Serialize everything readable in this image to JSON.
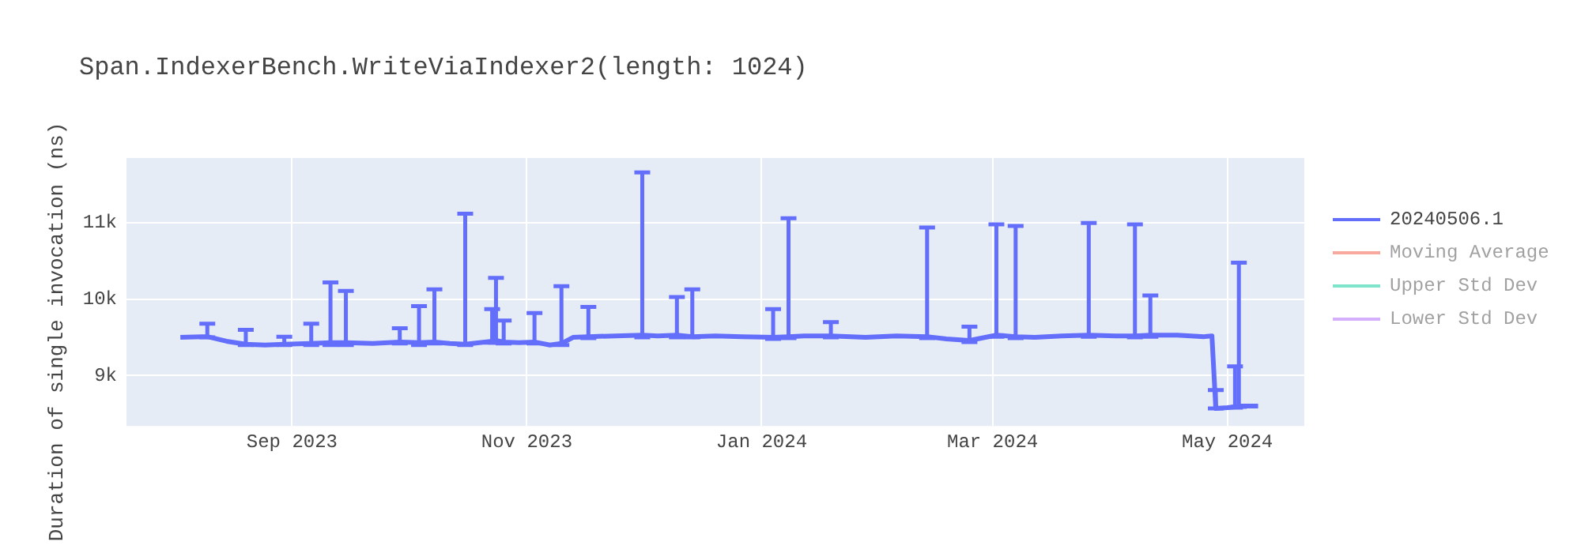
{
  "chart_data": {
    "type": "line",
    "title": "Span.IndexerBench.WriteViaIndexer2(length: 1024)",
    "ylabel": "Duration of single invocation (ns)",
    "x": [
      "2023-08-03",
      "2023-08-10",
      "2023-08-15",
      "2023-08-20",
      "2023-08-25",
      "2023-08-30",
      "2023-09-06",
      "2023-09-11",
      "2023-09-15",
      "2023-09-22",
      "2023-09-29",
      "2023-10-04",
      "2023-10-08",
      "2023-10-12",
      "2023-10-16",
      "2023-10-23",
      "2023-10-24",
      "2023-10-26",
      "2023-10-30",
      "2023-11-03",
      "2023-11-07",
      "2023-11-10",
      "2023-11-13",
      "2023-11-17",
      "2023-11-24",
      "2023-12-01",
      "2023-12-05",
      "2023-12-10",
      "2023-12-14",
      "2023-12-20",
      "2023-12-27",
      "2024-01-04",
      "2024-01-08",
      "2024-01-12",
      "2024-01-19",
      "2024-01-28",
      "2024-02-05",
      "2024-02-13",
      "2024-02-18",
      "2024-02-24",
      "2024-03-02",
      "2024-03-07",
      "2024-03-12",
      "2024-03-19",
      "2024-03-26",
      "2024-04-02",
      "2024-04-07",
      "2024-04-11",
      "2024-04-18",
      "2024-04-25",
      "2024-04-27",
      "2024-04-28",
      "2024-05-01",
      "2024-05-03",
      "2024-05-04",
      "2024-05-09"
    ],
    "series": [
      {
        "name": "20240506.1",
        "color": "#636efa",
        "values": [
          9500,
          9510,
          9450,
          9410,
          9400,
          9410,
          9420,
          9430,
          9430,
          9420,
          9440,
          9430,
          9440,
          9420,
          9410,
          9450,
          9460,
          9440,
          9430,
          9440,
          9400,
          9420,
          9500,
          9510,
          9520,
          9530,
          9520,
          9530,
          9510,
          9520,
          9510,
          9500,
          9510,
          9520,
          9520,
          9500,
          9520,
          9510,
          9480,
          9460,
          9530,
          9510,
          9500,
          9520,
          9530,
          9520,
          9520,
          9530,
          9530,
          9510,
          9520,
          8570,
          8580,
          8590,
          8600,
          8600
        ],
        "errors": [
          null,
          [
            9500,
            9680
          ],
          null,
          [
            9400,
            9600
          ],
          null,
          [
            9400,
            9510
          ],
          [
            9400,
            9680
          ],
          [
            9400,
            10220
          ],
          [
            9400,
            10110
          ],
          null,
          [
            9420,
            9620
          ],
          [
            9400,
            9910
          ],
          [
            9420,
            10130
          ],
          null,
          [
            9400,
            11120
          ],
          [
            9430,
            9870
          ],
          [
            9430,
            10280
          ],
          [
            9420,
            9720
          ],
          null,
          [
            9420,
            9820
          ],
          null,
          [
            9400,
            10170
          ],
          null,
          [
            9490,
            9900
          ],
          null,
          [
            9500,
            11660
          ],
          null,
          [
            9500,
            10030
          ],
          [
            9500,
            10130
          ],
          null,
          null,
          [
            9480,
            9870
          ],
          [
            9490,
            11060
          ],
          null,
          [
            9500,
            9700
          ],
          null,
          null,
          [
            9490,
            10940
          ],
          null,
          [
            9440,
            9640
          ],
          [
            9510,
            10980
          ],
          [
            9490,
            10960
          ],
          null,
          null,
          [
            9510,
            11000
          ],
          null,
          [
            9500,
            10980
          ],
          [
            9510,
            10050
          ],
          null,
          null,
          null,
          [
            8570,
            8810
          ],
          null,
          [
            8580,
            9120
          ],
          [
            8590,
            10480
          ],
          null
        ]
      },
      {
        "name": "Moving Average",
        "color": "#ef553b",
        "values": [
          null,
          null,
          null,
          null,
          null,
          null,
          null,
          null,
          null,
          null,
          null,
          null,
          null,
          null,
          null,
          null,
          null,
          null,
          null,
          null,
          null,
          null,
          null,
          null,
          null,
          null,
          null,
          null,
          null,
          null,
          null,
          null,
          null,
          null,
          null,
          null,
          null,
          null,
          null,
          null,
          null,
          null,
          null,
          null,
          null,
          null,
          null,
          null,
          null,
          null,
          null,
          null,
          null,
          null,
          null,
          null
        ]
      },
      {
        "name": "Upper Std Dev",
        "color": "#00cc96",
        "values": [
          null,
          null,
          null,
          null,
          null,
          null,
          null,
          null,
          null,
          null,
          null,
          null,
          null,
          null,
          null,
          null,
          null,
          null,
          null,
          null,
          null,
          null,
          null,
          null,
          null,
          null,
          null,
          null,
          null,
          null,
          null,
          null,
          null,
          null,
          null,
          null,
          null,
          null,
          null,
          null,
          null,
          null,
          null,
          null,
          null,
          null,
          null,
          null,
          null,
          null,
          null,
          null,
          null,
          null,
          null,
          null
        ]
      },
      {
        "name": "Lower Std Dev",
        "color": "#ab63fa",
        "values": [
          null,
          null,
          null,
          null,
          null,
          null,
          null,
          null,
          null,
          null,
          null,
          null,
          null,
          null,
          null,
          null,
          null,
          null,
          null,
          null,
          null,
          null,
          null,
          null,
          null,
          null,
          null,
          null,
          null,
          null,
          null,
          null,
          null,
          null,
          null,
          null,
          null,
          null,
          null,
          null,
          null,
          null,
          null,
          null,
          null,
          null,
          null,
          null,
          null,
          null,
          null,
          null,
          null,
          null,
          null,
          null
        ]
      }
    ],
    "xlim": [
      "2023-07-20",
      "2024-05-21"
    ],
    "xticks": [
      {
        "value": "2023-09-01",
        "label": "Sep 2023"
      },
      {
        "value": "2023-11-01",
        "label": "Nov 2023"
      },
      {
        "value": "2024-01-01",
        "label": "Jan 2024"
      },
      {
        "value": "2024-03-01",
        "label": "Mar 2024"
      },
      {
        "value": "2024-05-01",
        "label": "May 2024"
      }
    ],
    "ylim": [
      8340,
      11850
    ],
    "yticks": [
      {
        "value": 9000,
        "label": "9k"
      },
      {
        "value": 10000,
        "label": "10k"
      },
      {
        "value": 11000,
        "label": "11k"
      }
    ],
    "grid": true,
    "legend": "right",
    "marker": "none",
    "line_style": "solid"
  }
}
